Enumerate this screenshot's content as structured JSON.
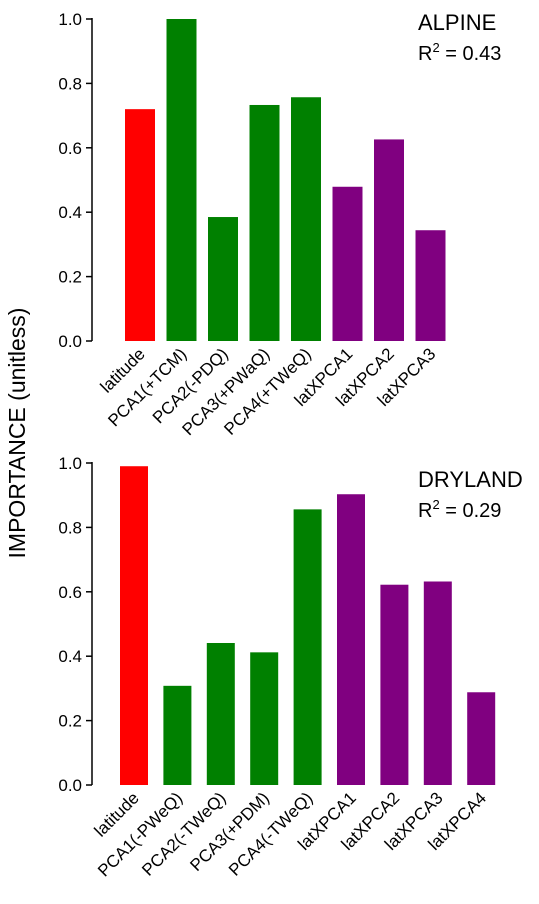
{
  "colors": {
    "red": "#ff0000",
    "green": "#008000",
    "purple": "#800080"
  },
  "chart_data": [
    {
      "type": "bar",
      "title": "ALPINE",
      "r2": {
        "prefix": "R",
        "sup": "2",
        "rest": " = 0.43"
      },
      "ylabel": "IMPORTANCE (unitless)",
      "ylim": [
        0,
        1.0
      ],
      "yticks": [
        "0.0",
        "0.2",
        "0.4",
        "0.6",
        "0.8",
        "1.0"
      ],
      "categories": [
        "latitude",
        "PCA1(+TCM)",
        "PCA2(-PDQ)",
        "PCA3(+PWaQ)",
        "PCA4(+TWeQ)",
        "latXPCA1",
        "latXPCA2",
        "latXPCA3"
      ],
      "values": [
        0.72,
        1.0,
        0.385,
        0.733,
        0.757,
        0.479,
        0.626,
        0.344
      ],
      "bar_colors": [
        "red",
        "green",
        "green",
        "green",
        "green",
        "purple",
        "purple",
        "purple"
      ]
    },
    {
      "type": "bar",
      "title": "DRYLAND",
      "r2": {
        "prefix": "R",
        "sup": "2",
        "rest": " = 0.29"
      },
      "ylim": [
        0,
        1.0
      ],
      "yticks": [
        "0.0",
        "0.2",
        "0.4",
        "0.6",
        "0.8",
        "1.0"
      ],
      "categories": [
        "latitude",
        "PCA1(-PWeQ)",
        "PCA2(-TWeQ)",
        "PCA3(+PDM)",
        "PCA4(-TWeQ)",
        "latXPCA1",
        "latXPCA2",
        "latXPCA3",
        "latXPCA4"
      ],
      "values": [
        0.99,
        0.308,
        0.441,
        0.412,
        0.856,
        0.903,
        0.622,
        0.632,
        0.288
      ],
      "bar_colors": [
        "red",
        "green",
        "green",
        "green",
        "green",
        "purple",
        "purple",
        "purple",
        "purple"
      ]
    }
  ]
}
